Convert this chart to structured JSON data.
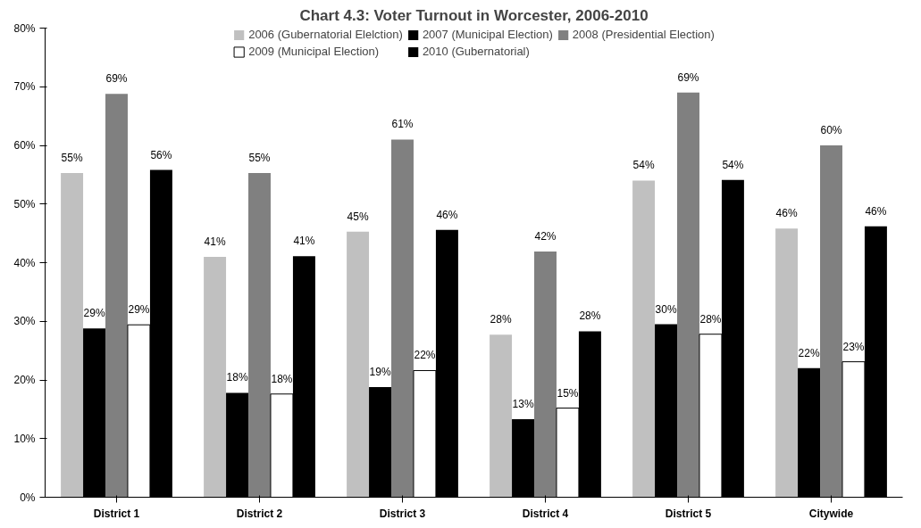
{
  "chart_data": {
    "type": "bar",
    "title": "Chart 4.3: Voter Turnout in Worcester, 2006-2010",
    "categories": [
      "District 1",
      "District 2",
      "District 3",
      "District 4",
      "District 5",
      "Citywide"
    ],
    "series": [
      {
        "name": "2006 (Gubernatorial Elelction)",
        "color": "#c0c0c0",
        "values": [
          55.3,
          41.0,
          45.3,
          27.7,
          54.0,
          45.8
        ],
        "value_labels": [
          "55%",
          "41%",
          "45%",
          "28%",
          "54%",
          "46%"
        ]
      },
      {
        "name": "2007 (Municipal Election)",
        "color": "#000000",
        "values": [
          28.8,
          17.8,
          18.8,
          13.3,
          29.5,
          22.0
        ],
        "value_labels": [
          "29%",
          "18%",
          "19%",
          "13%",
          "30%",
          "22%"
        ]
      },
      {
        "name": "2008 (Presidential Election)",
        "color": "#808080",
        "values": [
          68.8,
          55.3,
          61.0,
          41.9,
          69.0,
          60.0
        ],
        "value_labels": [
          "69%",
          "55%",
          "61%",
          "42%",
          "69%",
          "60%"
        ]
      },
      {
        "name": "2009 (Municipal Election)",
        "color": "#ffffff",
        "values": [
          29.4,
          17.6,
          21.6,
          15.2,
          27.8,
          23.1
        ],
        "value_labels": [
          "29%",
          "18%",
          "22%",
          "15%",
          "28%",
          "23%"
        ]
      },
      {
        "name": "2010 (Gubernatorial)",
        "color": "#000000",
        "values": [
          55.8,
          41.1,
          45.6,
          28.3,
          54.1,
          46.2
        ],
        "value_labels": [
          "56%",
          "41%",
          "46%",
          "28%",
          "54%",
          "46%"
        ]
      }
    ],
    "ylim": [
      0,
      80
    ],
    "yticks": [
      {
        "value": 0,
        "label": "0%"
      },
      {
        "value": 10,
        "label": "10%"
      },
      {
        "value": 20,
        "label": "20%"
      },
      {
        "value": 30,
        "label": "30%"
      },
      {
        "value": 40,
        "label": "40%"
      },
      {
        "value": 50,
        "label": "50%"
      },
      {
        "value": 60,
        "label": "60%"
      },
      {
        "value": 70,
        "label": "70%"
      },
      {
        "value": 80,
        "label": "80%"
      }
    ],
    "grid": false,
    "legend": "top"
  }
}
